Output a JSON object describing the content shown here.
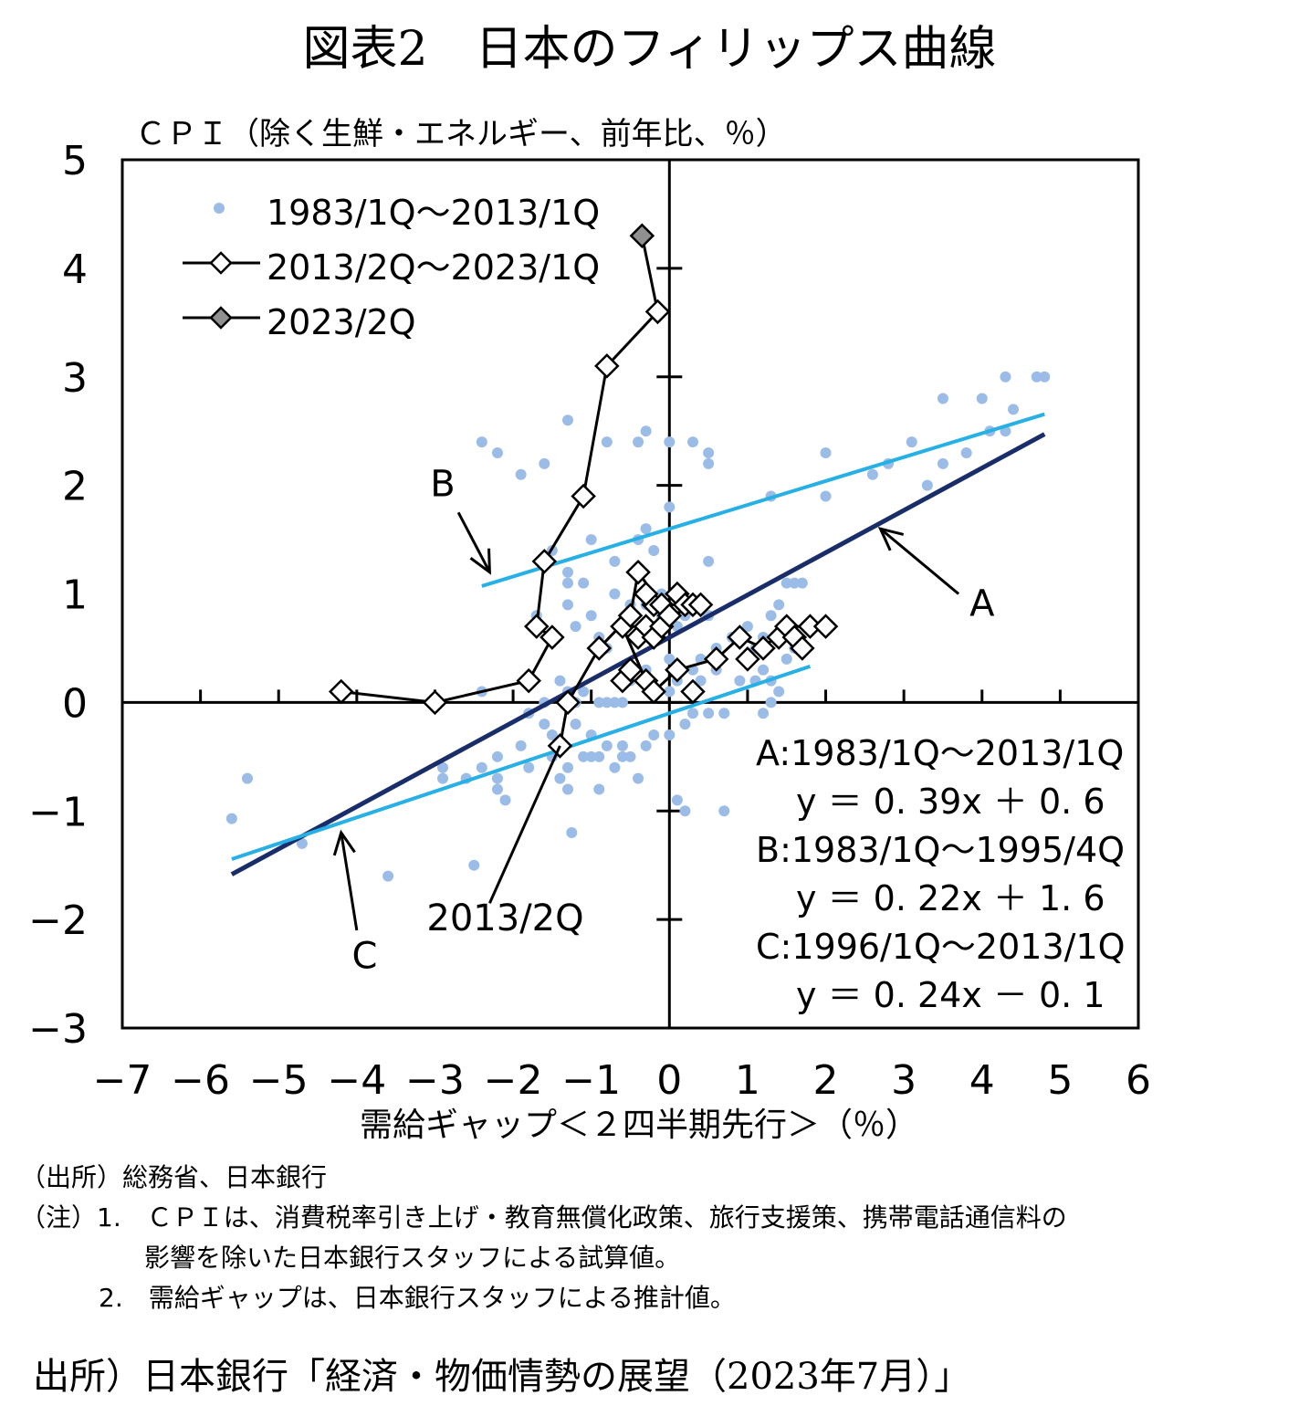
{
  "figure": {
    "title": "図表2　日本のフィリップス曲線",
    "source": "出所）日本銀行「経済・物価情勢の展望（2023年7月）」"
  },
  "notes": {
    "source_line": "（出所）総務省、日本銀行",
    "note1_a": "（注）1.　ＣＰＩは、消費税率引き上げ・教育無償化政策、旅行支援策、携帯電話通信料の",
    "note1_b": "影響を除いた日本銀行スタッフによる試算値。",
    "note2": "2.　需給ギャップは、日本銀行スタッフによる推計値。"
  },
  "colors": {
    "scatter": "#9bbce6",
    "line_A": "#1a2d6b",
    "line_BC": "#26b0e6",
    "marker_recent": "#909090"
  },
  "chart_data": {
    "type": "scatter",
    "ylabel": "ＣＰＩ（除く生鮮・エネルギー、前年比、％）",
    "xlabel": "需給ギャップ＜２四半期先行＞（％）",
    "xlim": [
      -7,
      6
    ],
    "ylim": [
      -3,
      5
    ],
    "xticks": [
      "−7",
      "−6",
      "−5",
      "−4",
      "−3",
      "−2",
      "−1",
      "0",
      "1",
      "2",
      "3",
      "4",
      "5",
      "6"
    ],
    "yticks": [
      "5",
      "4",
      "3",
      "2",
      "1",
      "0",
      "−1",
      "−2",
      "−3"
    ],
    "grid": false,
    "legend_position": "top-left",
    "legend": [
      {
        "label": "1983/1Q～2013/1Q"
      },
      {
        "label": "2013/2Q～2023/1Q"
      },
      {
        "label": "2023/2Q"
      }
    ],
    "series": [
      {
        "name": "1983/1Q～2013/1Q",
        "points": [
          [
            -5.6,
            -1.07
          ],
          [
            -5.4,
            -0.7
          ],
          [
            -4.7,
            -1.3
          ],
          [
            -3.6,
            -1.6
          ],
          [
            -2.5,
            -1.5
          ],
          [
            -2.9,
            -0.6
          ],
          [
            -2.9,
            -0.7
          ],
          [
            -2.6,
            -0.7
          ],
          [
            -2.4,
            -0.6
          ],
          [
            -2.2,
            -0.7
          ],
          [
            -2.2,
            -0.8
          ],
          [
            -2.2,
            -0.5
          ],
          [
            -2.1,
            -0.9
          ],
          [
            -1.9,
            -0.4
          ],
          [
            -1.8,
            -0.6
          ],
          [
            -1.6,
            -0.2
          ],
          [
            -1.5,
            -0.3
          ],
          [
            -1.5,
            -0.5
          ],
          [
            -1.4,
            -0.7
          ],
          [
            -1.3,
            -0.6
          ],
          [
            -1.3,
            -0.8
          ],
          [
            -1.25,
            -1.2
          ],
          [
            -1.2,
            -0.2
          ],
          [
            -1.1,
            -0.5
          ],
          [
            -1.0,
            -0.3
          ],
          [
            -1.0,
            -0.5
          ],
          [
            -0.9,
            -0.8
          ],
          [
            -0.9,
            -0.5
          ],
          [
            -0.8,
            -0.4
          ],
          [
            -0.7,
            -0.6
          ],
          [
            -0.6,
            -0.5
          ],
          [
            -0.6,
            -0.4
          ],
          [
            -0.5,
            -0.5
          ],
          [
            -0.4,
            -0.7
          ],
          [
            -0.3,
            -0.4
          ],
          [
            -0.2,
            -0.3
          ],
          [
            0.0,
            -0.3
          ],
          [
            0.1,
            -0.9
          ],
          [
            0.2,
            -1.0
          ],
          [
            0.7,
            -1.0
          ],
          [
            0.2,
            -0.2
          ],
          [
            0.3,
            -0.1
          ],
          [
            0.5,
            -0.1
          ],
          [
            0.7,
            -0.1
          ],
          [
            1.2,
            -0.1
          ],
          [
            -2.4,
            0.1
          ],
          [
            -1.8,
            -0.1
          ],
          [
            -1.6,
            0.0
          ],
          [
            -1.4,
            0.2
          ],
          [
            -1.3,
            0.1
          ],
          [
            -1.2,
            0.0
          ],
          [
            -1.1,
            0.1
          ],
          [
            -0.9,
            0.0
          ],
          [
            -0.8,
            0.0
          ],
          [
            -0.7,
            0.0
          ],
          [
            -0.6,
            0.0
          ],
          [
            -0.5,
            0.2
          ],
          [
            -0.3,
            0.3
          ],
          [
            0.0,
            0.1
          ],
          [
            0.1,
            0.2
          ],
          [
            0.3,
            0.3
          ],
          [
            0.4,
            0.2
          ],
          [
            0.4,
            0.4
          ],
          [
            0.6,
            0.3
          ],
          [
            0.9,
            0.2
          ],
          [
            1.1,
            0.2
          ],
          [
            1.2,
            0.3
          ],
          [
            1.3,
            0.2
          ],
          [
            1.4,
            0.1
          ],
          [
            1.5,
            0.4
          ],
          [
            1.6,
            0.5
          ],
          [
            1.3,
            0.0
          ],
          [
            -1.7,
            0.8
          ],
          [
            -1.3,
            0.9
          ],
          [
            -1.3,
            1.1
          ],
          [
            -1.2,
            0.7
          ],
          [
            -1.1,
            1.1
          ],
          [
            -1.0,
            0.8
          ],
          [
            -0.9,
            0.6
          ],
          [
            -0.8,
            0.5
          ],
          [
            -0.7,
            1.0
          ],
          [
            -0.6,
            0.7
          ],
          [
            -0.5,
            0.9
          ],
          [
            -0.4,
            0.6
          ],
          [
            -0.3,
            0.9
          ],
          [
            -0.1,
            0.8
          ],
          [
            -0.1,
            1.0
          ],
          [
            0.0,
            0.4
          ],
          [
            0.1,
            0.7
          ],
          [
            0.2,
            0.8
          ],
          [
            0.5,
            0.8
          ],
          [
            0.6,
            0.5
          ],
          [
            0.8,
            0.6
          ],
          [
            1.0,
            0.7
          ],
          [
            1.1,
            0.5
          ],
          [
            1.2,
            0.6
          ],
          [
            1.3,
            0.8
          ],
          [
            1.4,
            0.9
          ],
          [
            1.5,
            1.1
          ],
          [
            1.6,
            1.1
          ],
          [
            1.7,
            1.1
          ],
          [
            -1.5,
            1.4
          ],
          [
            -1.3,
            1.2
          ],
          [
            -1.0,
            1.5
          ],
          [
            -0.7,
            1.3
          ],
          [
            -0.4,
            1.5
          ],
          [
            -0.3,
            1.6
          ],
          [
            -0.2,
            1.4
          ],
          [
            0.0,
            1.8
          ],
          [
            0.5,
            1.3
          ],
          [
            1.3,
            1.9
          ],
          [
            2.0,
            1.9
          ],
          [
            -2.4,
            2.4
          ],
          [
            -2.2,
            2.3
          ],
          [
            -1.9,
            2.1
          ],
          [
            -1.6,
            2.2
          ],
          [
            -1.3,
            2.6
          ],
          [
            -0.8,
            2.4
          ],
          [
            -0.4,
            2.4
          ],
          [
            -0.3,
            2.5
          ],
          [
            0.0,
            2.4
          ],
          [
            0.3,
            2.4
          ],
          [
            0.5,
            2.3
          ],
          [
            0.5,
            2.2
          ],
          [
            2.0,
            2.3
          ],
          [
            2.6,
            2.1
          ],
          [
            2.8,
            2.2
          ],
          [
            3.1,
            2.4
          ],
          [
            3.3,
            2.0
          ],
          [
            3.5,
            2.2
          ],
          [
            3.8,
            2.3
          ],
          [
            4.0,
            2.8
          ],
          [
            4.1,
            2.5
          ],
          [
            4.3,
            2.5
          ],
          [
            4.4,
            2.7
          ],
          [
            3.5,
            2.8
          ],
          [
            4.3,
            3.0
          ],
          [
            4.7,
            3.0
          ],
          [
            4.8,
            3.0
          ]
        ]
      },
      {
        "name": "2013/2Q～2023/1Q",
        "points": [
          [
            -1.4,
            -0.4
          ],
          [
            -1.3,
            0.0
          ],
          [
            -1.8,
            0.2
          ],
          [
            -3.0,
            0.0
          ],
          [
            -4.2,
            0.1
          ],
          [
            -1.5,
            0.6
          ],
          [
            -1.7,
            0.7
          ],
          [
            -1.6,
            1.3
          ],
          [
            -1.1,
            1.9
          ],
          [
            -0.8,
            3.1
          ],
          [
            -0.15,
            3.6
          ],
          [
            -0.9,
            0.5
          ],
          [
            -0.6,
            0.7
          ],
          [
            -0.5,
            0.8
          ],
          [
            -0.4,
            0.6
          ],
          [
            -0.3,
            0.7
          ],
          [
            -0.2,
            0.9
          ],
          [
            -0.3,
            1.0
          ],
          [
            -0.4,
            1.2
          ],
          [
            -0.1,
            0.9
          ],
          [
            0.1,
            1.0
          ],
          [
            0.2,
            0.9
          ],
          [
            0.3,
            0.9
          ],
          [
            0.4,
            0.9
          ],
          [
            -0.2,
            0.6
          ],
          [
            -0.1,
            0.7
          ],
          [
            0.0,
            0.8
          ],
          [
            -0.6,
            0.2
          ],
          [
            -0.5,
            0.3
          ],
          [
            -0.3,
            0.2
          ],
          [
            -0.2,
            0.1
          ],
          [
            0.1,
            0.3
          ],
          [
            0.3,
            0.1
          ],
          [
            0.6,
            0.4
          ],
          [
            0.9,
            0.6
          ],
          [
            1.0,
            0.4
          ],
          [
            1.2,
            0.5
          ],
          [
            1.4,
            0.6
          ],
          [
            1.5,
            0.7
          ],
          [
            1.6,
            0.6
          ],
          [
            1.7,
            0.5
          ],
          [
            1.8,
            0.7
          ],
          [
            2.0,
            0.7
          ]
        ],
        "path": [
          [
            -1.4,
            -0.4
          ],
          [
            -1.3,
            0.0
          ],
          [
            -0.9,
            0.5
          ],
          [
            -0.5,
            0.8
          ],
          [
            -0.4,
            1.2
          ],
          [
            -0.1,
            0.9
          ],
          [
            0.2,
            0.9
          ],
          [
            0.4,
            0.9
          ],
          [
            0.0,
            0.8
          ],
          [
            -0.3,
            0.7
          ],
          [
            -0.6,
            0.7
          ],
          [
            -0.3,
            0.2
          ],
          [
            -0.2,
            0.1
          ],
          [
            0.1,
            0.3
          ],
          [
            0.6,
            0.4
          ],
          [
            0.9,
            0.6
          ],
          [
            1.2,
            0.5
          ],
          [
            1.5,
            0.7
          ],
          [
            1.8,
            0.7
          ],
          [
            2.0,
            0.7
          ]
        ],
        "path2": [
          [
            -4.2,
            0.1
          ],
          [
            -3.0,
            0.0
          ],
          [
            -1.8,
            0.2
          ],
          [
            -1.5,
            0.6
          ],
          [
            -1.7,
            0.7
          ],
          [
            -1.6,
            1.3
          ],
          [
            -1.1,
            1.9
          ],
          [
            -0.8,
            3.1
          ],
          [
            -0.15,
            3.6
          ]
        ]
      },
      {
        "name": "2023/2Q",
        "points": [
          [
            -0.35,
            4.3
          ]
        ]
      }
    ],
    "regression_lines": [
      {
        "name": "A",
        "period": "A:1983/1Q～2013/1Q",
        "equation": "y ＝ 0. 39x ＋ 0. 6",
        "slope": 0.39,
        "intercept": 0.6,
        "x_range": [
          -5.6,
          4.8
        ]
      },
      {
        "name": "B",
        "period": "B:1983/1Q～1995/4Q",
        "equation": "y ＝ 0. 22x ＋ 1. 6",
        "slope": 0.22,
        "intercept": 1.6,
        "x_range": [
          -2.4,
          4.8
        ]
      },
      {
        "name": "C",
        "period": "C:1996/1Q～2013/1Q",
        "equation": "y ＝ 0. 24x － 0. 1",
        "slope": 0.24,
        "intercept": -0.1,
        "x_range": [
          -5.6,
          1.8
        ]
      }
    ],
    "annotations": [
      {
        "label": "A",
        "text_at": [
          4.0,
          0.8
        ],
        "arrow_from": [
          3.7,
          1.0
        ],
        "arrow_to": [
          2.7,
          1.6
        ]
      },
      {
        "label": "B",
        "text_at": [
          -2.9,
          1.9
        ],
        "arrow_from": [
          -2.7,
          1.75
        ],
        "arrow_to": [
          -2.3,
          1.2
        ]
      },
      {
        "label": "C",
        "text_at": [
          -3.9,
          -2.45
        ],
        "arrow_from": [
          -4.0,
          -2.1
        ],
        "arrow_to": [
          -4.2,
          -1.2
        ]
      },
      {
        "label": "2013/2Q",
        "text_at": [
          -2.1,
          -2.1
        ],
        "arrow_from": [
          -2.3,
          -1.85
        ],
        "arrow_to": [
          -1.4,
          -0.4
        ]
      }
    ]
  }
}
